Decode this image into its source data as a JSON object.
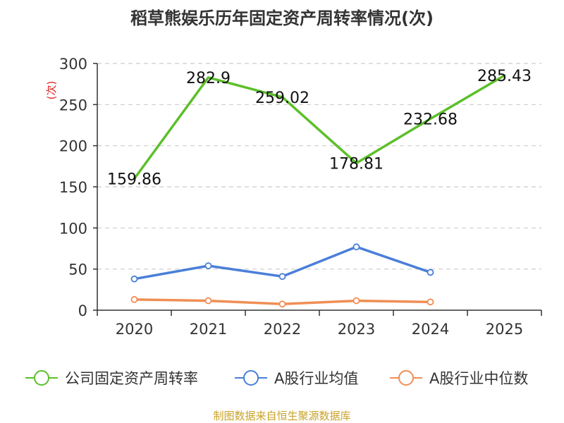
{
  "chart_data": {
    "type": "line",
    "title": "稻草熊娱乐历年固定资产周转率情况(次)",
    "ylabel": "(次)",
    "xlabel": "",
    "categories": [
      "2020",
      "2021",
      "2022",
      "2023",
      "2024",
      "2025"
    ],
    "ylim": [
      0,
      300
    ],
    "yticks": [
      0,
      50,
      100,
      150,
      200,
      250,
      300
    ],
    "grid": true,
    "legend_position": "bottom",
    "series": [
      {
        "name": "公司固定资产周转率",
        "color": "#5cbf2a",
        "values": [
          159.86,
          282.9,
          259.02,
          178.81,
          232.68,
          285.43
        ],
        "labels": [
          "159.86",
          "282.9",
          "259.02",
          "178.81",
          "232.68",
          "285.43"
        ],
        "markers": false,
        "show_labels": true
      },
      {
        "name": "A股行业均值",
        "color": "#4a7fd8",
        "values": [
          38,
          54,
          41,
          77,
          46,
          null
        ],
        "markers": true,
        "show_labels": false
      },
      {
        "name": "A股行业中位数",
        "color": "#f08e55",
        "values": [
          13,
          11.5,
          7.5,
          11.5,
          10,
          null
        ],
        "markers": true,
        "show_labels": false
      }
    ],
    "source": "制图数据来自恒生聚源数据库"
  }
}
